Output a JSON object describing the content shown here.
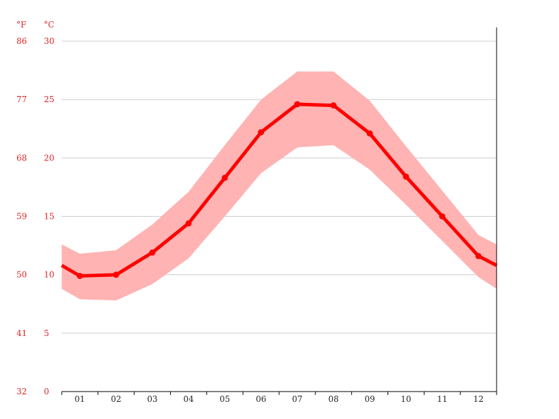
{
  "chart_data": {
    "type": "line",
    "categories": [
      "01",
      "02",
      "03",
      "04",
      "05",
      "06",
      "07",
      "08",
      "09",
      "10",
      "11",
      "12"
    ],
    "series": [
      {
        "values": [
          9.9,
          10.0,
          11.9,
          14.4,
          18.3,
          22.2,
          24.6,
          24.5,
          22.1,
          18.4,
          15.0,
          11.6
        ]
      }
    ],
    "band": {
      "upper": [
        11.8,
        12.1,
        14.3,
        17.1,
        21.1,
        25.0,
        27.4,
        27.4,
        24.9,
        21.0,
        17.2,
        13.4
      ],
      "lower": [
        7.9,
        7.8,
        9.2,
        11.4,
        15.0,
        18.7,
        20.9,
        21.1,
        19.0,
        16.0,
        12.9,
        9.8
      ]
    },
    "edge": {
      "value_left": 10.8,
      "value_right": 10.8,
      "upper_left": 12.6,
      "upper_right": 12.6,
      "lower_left": 8.8,
      "lower_right": 8.8
    },
    "ylim": [
      0,
      30
    ],
    "yticks_c": [
      "0",
      "5",
      "10",
      "15",
      "20",
      "25",
      "30"
    ],
    "yticks_f": [
      "32",
      "41",
      "50",
      "59",
      "68",
      "77",
      "86"
    ],
    "y_unit_left": "°F",
    "y_unit_right": "°C",
    "grid": true,
    "colors": {
      "line": "#ff0000",
      "band": "#ffb3b3",
      "grid": "#cccccc",
      "axis": "#000000",
      "tick_label": "#dd2222"
    }
  }
}
